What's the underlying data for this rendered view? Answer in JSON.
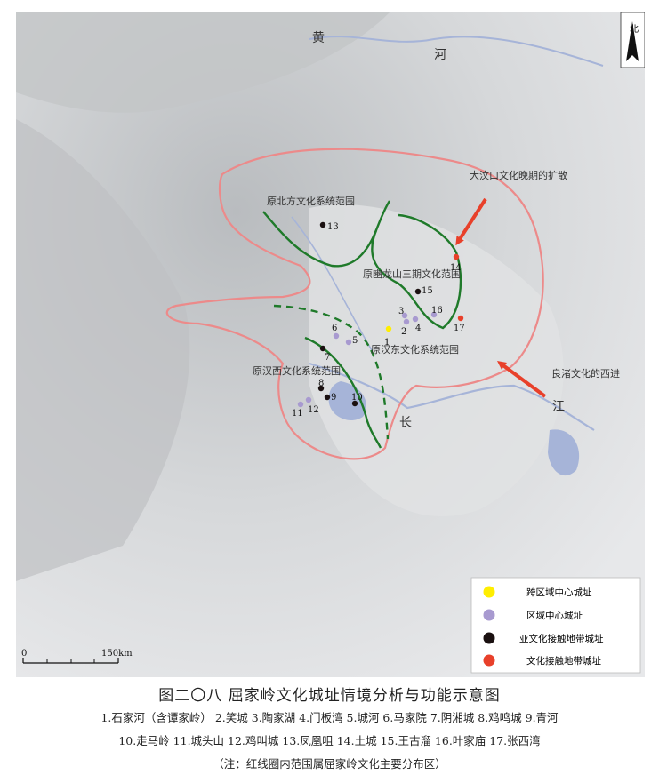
{
  "map": {
    "river_labels": {
      "huang": "黄",
      "he": "河",
      "chang": "长",
      "jiang": "江"
    },
    "north_label": "北",
    "region_labels": {
      "north": "原北方文化系统范围",
      "longshan": "原豳龙山三期文化范围",
      "east": "原汉东文化系统范围",
      "west": "原汉西文化系统范围"
    },
    "arrow_labels": {
      "dawenkou": "大汶口文化晚期的扩散",
      "liangzhu": "良渚文化的西进"
    },
    "sites": [
      {
        "id": "1",
        "type": "cross-regional"
      },
      {
        "id": "2",
        "type": "regional"
      },
      {
        "id": "3",
        "type": "regional"
      },
      {
        "id": "4",
        "type": "regional"
      },
      {
        "id": "5",
        "type": "regional"
      },
      {
        "id": "6",
        "type": "regional"
      },
      {
        "id": "7",
        "type": "sub-contact"
      },
      {
        "id": "8",
        "type": "sub-contact"
      },
      {
        "id": "9",
        "type": "sub-contact"
      },
      {
        "id": "10",
        "type": "sub-contact"
      },
      {
        "id": "11",
        "type": "regional"
      },
      {
        "id": "12",
        "type": "regional"
      },
      {
        "id": "13",
        "type": "sub-contact"
      },
      {
        "id": "14",
        "type": "contact"
      },
      {
        "id": "15",
        "type": "sub-contact"
      },
      {
        "id": "16",
        "type": "regional"
      },
      {
        "id": "17",
        "type": "contact"
      }
    ],
    "legend": [
      {
        "label": "跨区域中心城址",
        "color": "#ffee00"
      },
      {
        "label": "区域中心城址",
        "color": "#a89ad0"
      },
      {
        "label": "亚文化接触地带城址",
        "color": "#1a1010"
      },
      {
        "label": "文化接触地带城址",
        "color": "#e8402a"
      }
    ],
    "scale": {
      "start": "0",
      "end": "150km"
    },
    "colors": {
      "boundary": "#ec8a8a",
      "culture_line": "#1f7a2a",
      "arrow": "#e8402a"
    }
  },
  "caption": {
    "title": "图二〇八   屈家岭文化城址情境分析与功能示意图",
    "line1": "1.石家河（含谭家岭）   2.笑城   3.陶家湖   4.门板湾   5.城河   6.马家院   7.阴湘城   8.鸡鸣城   9.青河",
    "line2": "10.走马岭   11.城头山   12.鸡叫城   13.凤凰咀   14.土城   15.王古溜   16.叶家庙   17.张西湾",
    "note": "（注：红线圈内范围属屈家岭文化主要分布区）"
  }
}
